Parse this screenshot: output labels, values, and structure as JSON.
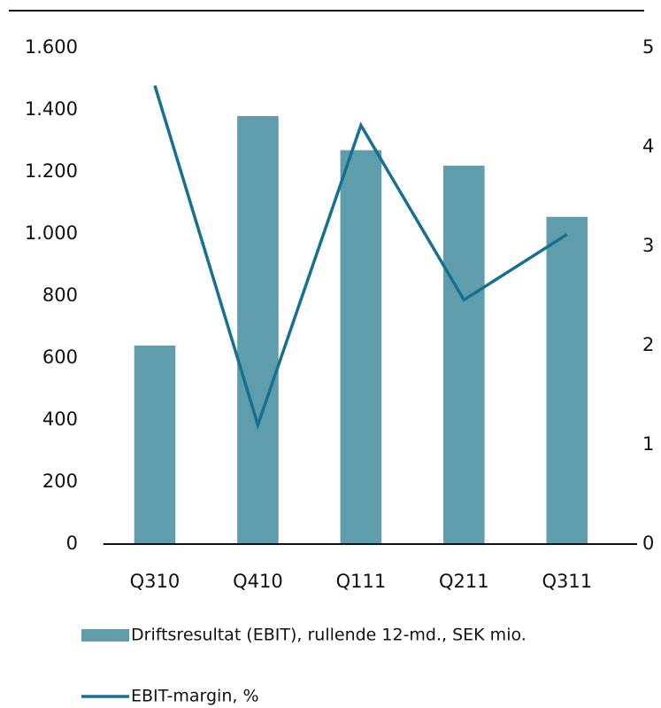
{
  "chart_data": {
    "type": "bar-line",
    "categories": [
      "Q310",
      "Q410",
      "Q111",
      "Q211",
      "Q311"
    ],
    "series": [
      {
        "name": "Driftsresultat (EBIT), rullende 12-md., SEK mio.",
        "color": "#5f9dac",
        "type": "bar",
        "values": [
          640,
          1380,
          1270,
          1220,
          1055
        ]
      },
      {
        "name": "EBIT-margin, %",
        "color": "#17708f",
        "type": "line",
        "axis": "y2",
        "values": [
          4.62,
          1.2,
          4.22,
          2.46,
          3.12
        ]
      }
    ],
    "ylim": [
      0,
      1600
    ],
    "yticks": [
      0,
      200,
      400,
      600,
      800,
      {
        "value": 1000,
        "label": "1.000"
      },
      {
        "value": 1200,
        "label": "1.200"
      },
      {
        "value": 1400,
        "label": "1.400"
      },
      {
        "value": 1600,
        "label": "1.600"
      }
    ],
    "y2lim": [
      0,
      5
    ],
    "y2ticks": [
      0,
      1,
      2,
      3,
      4,
      5
    ],
    "legend": "bottom"
  }
}
